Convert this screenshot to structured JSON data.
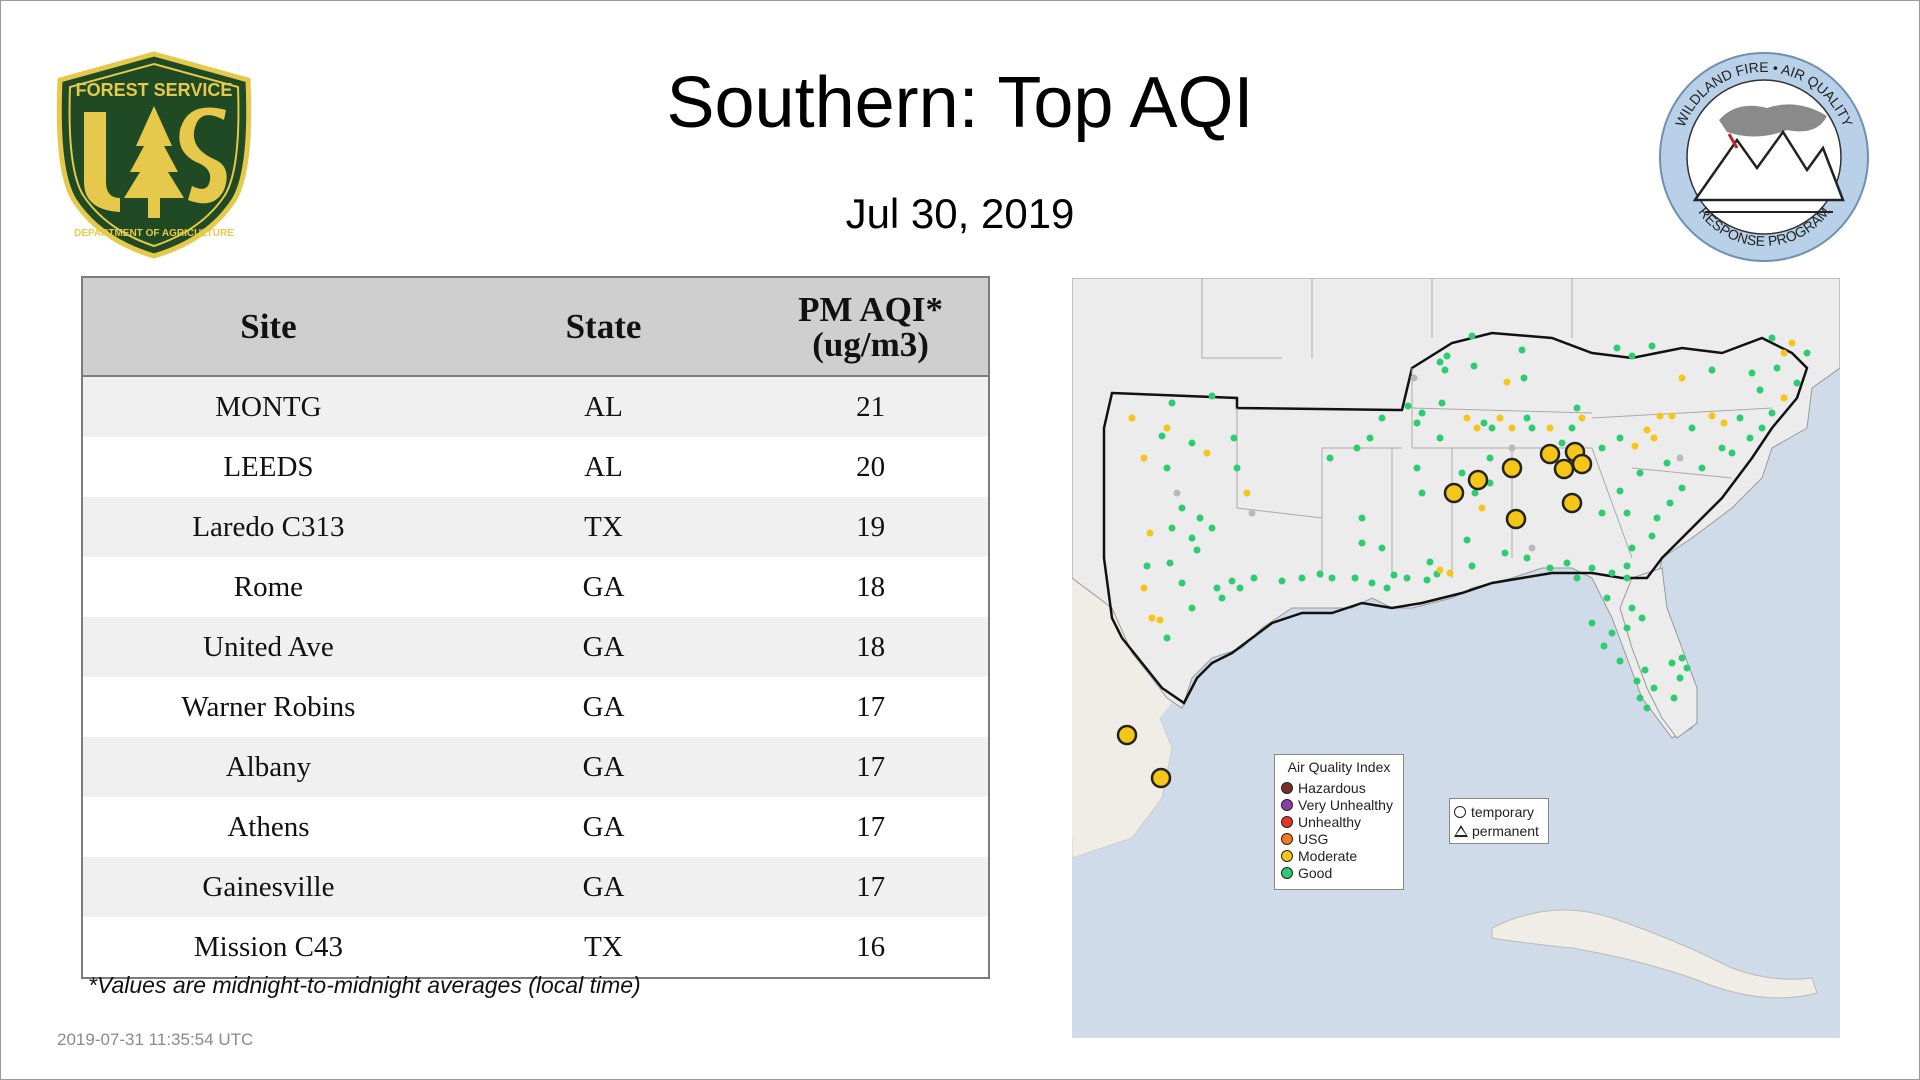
{
  "header": {
    "title": "Southern: Top AQI",
    "date": "Jul 30, 2019"
  },
  "logos": {
    "forest_service": {
      "top_text": "FOREST SERVICE",
      "letters": "US",
      "bottom_text": "DEPARTMENT OF AGRICULTURE",
      "icon": "usfs-shield-icon"
    },
    "wildland_fire": {
      "top_text": "WILDLAND FIRE • AIR QUALITY",
      "bottom_text": "RESPONSE PROGRAM",
      "icon": "mountains-smoke-icon"
    }
  },
  "table": {
    "headers": {
      "site": "Site",
      "state": "State",
      "aqi_line1": "PM AQI*",
      "aqi_line2": "(ug/m3)"
    },
    "rows": [
      {
        "site": "MONTG",
        "state": "AL",
        "value": "21"
      },
      {
        "site": "LEEDS",
        "state": "AL",
        "value": "20"
      },
      {
        "site": "Laredo C313",
        "state": "TX",
        "value": "19"
      },
      {
        "site": "Rome",
        "state": "GA",
        "value": "18"
      },
      {
        "site": "United Ave",
        "state": "GA",
        "value": "18"
      },
      {
        "site": "Warner Robins",
        "state": "GA",
        "value": "17"
      },
      {
        "site": "Albany",
        "state": "GA",
        "value": "17"
      },
      {
        "site": "Athens",
        "state": "GA",
        "value": "17"
      },
      {
        "site": "Gainesville",
        "state": "GA",
        "value": "17"
      },
      {
        "site": "Mission C43",
        "state": "TX",
        "value": "16"
      }
    ]
  },
  "footnote": "*Values are midnight-to-midnight averages (local time)",
  "timestamp": "2019-07-31 11:35:54 UTC",
  "map": {
    "legend": {
      "title": "Air Quality Index",
      "items": [
        {
          "label": "Hazardous",
          "color": "#7e2a2a"
        },
        {
          "label": "Very Unhealthy",
          "color": "#8b3fa8"
        },
        {
          "label": "Unhealthy",
          "color": "#e4352b"
        },
        {
          "label": "USG",
          "color": "#f07c1d"
        },
        {
          "label": "Moderate",
          "color": "#f5c518"
        },
        {
          "label": "Good",
          "color": "#2ecc71"
        }
      ]
    },
    "shape_legend": {
      "items": [
        {
          "label": "temporary",
          "icon": "circle-icon"
        },
        {
          "label": "permanent",
          "icon": "triangle-icon"
        }
      ]
    },
    "colors": {
      "water": "#cfdbe8",
      "land": "#ececec",
      "other_land": "#f0ece6",
      "good": "#2ecc71",
      "moderate": "#f5c518",
      "no_data": "#b9b9b9"
    }
  }
}
